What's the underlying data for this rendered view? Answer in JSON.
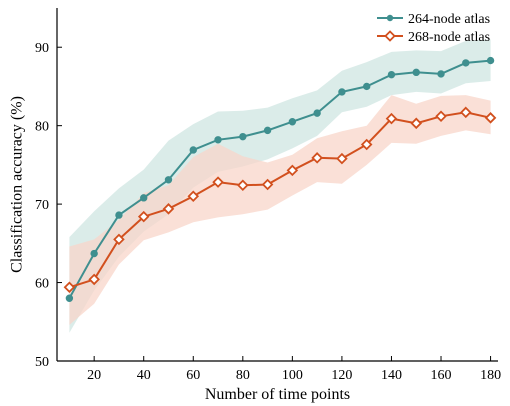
{
  "chart_data": {
    "type": "line",
    "title": "",
    "xlabel": "Number of time points",
    "ylabel": "Classification accuracy (%)",
    "xlim": [
      5,
      183
    ],
    "ylim": [
      50,
      95
    ],
    "xticks": [
      20,
      40,
      60,
      80,
      100,
      120,
      140,
      160,
      180
    ],
    "yticks": [
      50,
      60,
      70,
      80,
      90
    ],
    "x": [
      10,
      20,
      30,
      40,
      50,
      60,
      70,
      80,
      90,
      100,
      110,
      120,
      130,
      140,
      150,
      160,
      170,
      180
    ],
    "legend_position": "top-right",
    "grid": false,
    "series": [
      {
        "name": "264-node atlas",
        "color": "#3f8f8f",
        "band_color": "#cfe6e2",
        "marker": "circle",
        "values": [
          58.0,
          63.7,
          68.6,
          70.8,
          73.1,
          76.9,
          78.2,
          78.6,
          79.4,
          80.5,
          81.6,
          84.3,
          85.0,
          86.5,
          86.8,
          86.6,
          88.0,
          88.3
        ],
        "upper": [
          65.8,
          69.1,
          72.0,
          74.4,
          78.1,
          80.2,
          81.8,
          81.9,
          82.3,
          83.5,
          84.5,
          87.0,
          88.1,
          89.4,
          89.6,
          89.5,
          90.8,
          91.0
        ],
        "lower": [
          53.6,
          59.0,
          63.3,
          66.5,
          68.7,
          72.1,
          74.1,
          74.8,
          75.7,
          77.1,
          78.7,
          81.7,
          82.4,
          83.9,
          84.3,
          84.1,
          85.4,
          85.7
        ]
      },
      {
        "name": "268-node atlas",
        "color": "#d2501e",
        "band_color": "#f8d5c9",
        "marker": "diamond",
        "values": [
          59.4,
          60.4,
          65.5,
          68.4,
          69.4,
          71.0,
          72.8,
          72.4,
          72.5,
          74.3,
          75.9,
          75.8,
          77.6,
          80.9,
          80.3,
          81.2,
          81.7,
          81.0
        ],
        "upper": [
          64.6,
          65.5,
          68.0,
          71.4,
          72.4,
          76.0,
          77.7,
          76.1,
          75.3,
          76.3,
          78.4,
          79.3,
          80.0,
          83.9,
          82.8,
          83.8,
          83.9,
          83.2
        ],
        "lower": [
          54.6,
          57.3,
          62.3,
          65.4,
          66.4,
          67.7,
          68.3,
          68.7,
          69.3,
          71.1,
          72.8,
          72.6,
          75.0,
          77.8,
          77.7,
          78.7,
          79.4,
          78.9
        ]
      }
    ]
  }
}
